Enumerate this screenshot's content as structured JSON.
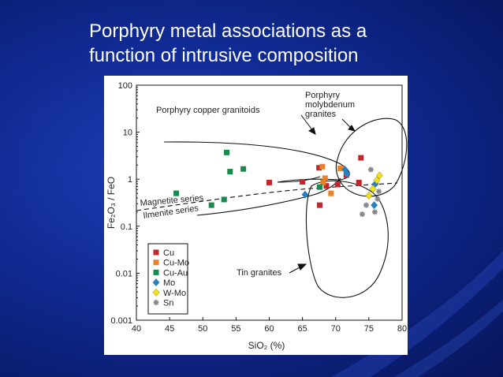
{
  "slide": {
    "title_line1": "Porphyry metal associations as a",
    "title_line2": "function of intrusive composition"
  },
  "chart_data": {
    "type": "scatter",
    "xlabel": "SiO₂ (%)",
    "ylabel": "Fe₂O₃ / FeO",
    "xlim": [
      40,
      80
    ],
    "ylim": [
      0.001,
      100
    ],
    "y_scale": "log",
    "x_ticks": [
      "40",
      "45",
      "50",
      "55",
      "60",
      "65",
      "70",
      "75",
      "80"
    ],
    "y_ticks": [
      {
        "v": 0.001,
        "label": "0.001"
      },
      {
        "v": 0.01,
        "label": "0.01"
      },
      {
        "v": 0.1,
        "label": "0.1"
      },
      {
        "v": 1,
        "label": "1"
      },
      {
        "v": 10,
        "label": "10"
      },
      {
        "v": 100,
        "label": "100"
      }
    ],
    "grid": false,
    "legend_position": "bottom-left",
    "annotations": {
      "porphyry_copper": "Porphyry copper granitoids",
      "porphyry_moly_1": "Porphyry",
      "porphyry_moly_2": "molybdenum",
      "porphyry_moly_3": "granites",
      "tin_granites": "Tin granites",
      "magnetite": "Magnetite series",
      "ilmenite": "Ilmenite series"
    },
    "series": [
      {
        "name": "Cu",
        "color": "#c1272d",
        "marker": "square",
        "points": [
          [
            60,
            0.85
          ],
          [
            65,
            0.88
          ],
          [
            67.5,
            1.75
          ],
          [
            67.6,
            0.28
          ],
          [
            68.6,
            0.72
          ],
          [
            70.3,
            0.77
          ],
          [
            71.6,
            1.22
          ],
          [
            73.8,
            2.85
          ],
          [
            73.5,
            0.85
          ]
        ]
      },
      {
        "name": "Cu-Mo",
        "color": "#e8822a",
        "marker": "square",
        "points": [
          [
            68.0,
            1.85
          ],
          [
            68.4,
            1.05
          ],
          [
            68.1,
            0.85
          ],
          [
            69.3,
            0.5
          ],
          [
            70.7,
            1.7
          ]
        ]
      },
      {
        "name": "Cu-Au",
        "color": "#178a4e",
        "marker": "square",
        "points": [
          [
            46,
            0.5
          ],
          [
            53.6,
            3.7
          ],
          [
            54.1,
            1.45
          ],
          [
            56.1,
            1.65
          ],
          [
            51.3,
            0.28
          ],
          [
            53.2,
            0.37
          ],
          [
            67.6,
            0.68
          ]
        ]
      },
      {
        "name": "Mo",
        "color": "#2a7fc1",
        "marker": "diamond",
        "points": [
          [
            65.4,
            0.47
          ],
          [
            71.4,
            1.6
          ],
          [
            71.7,
            1.3
          ],
          [
            75.8,
            0.28
          ],
          [
            76.0,
            0.8
          ]
        ]
      },
      {
        "name": "W-Mo",
        "color": "#f0e020",
        "marker": "diamond",
        "points": [
          [
            75.0,
            0.45
          ],
          [
            75.6,
            0.62
          ],
          [
            76.2,
            0.95
          ],
          [
            76.6,
            1.2
          ]
        ]
      },
      {
        "name": "Sn",
        "color": "#888888",
        "marker": "star",
        "points": [
          [
            74.0,
            0.18
          ],
          [
            74.6,
            0.28
          ],
          [
            75.3,
            1.6
          ],
          [
            75.9,
            0.2
          ],
          [
            76.3,
            0.38
          ],
          [
            76.5,
            0.55
          ]
        ]
      }
    ]
  }
}
